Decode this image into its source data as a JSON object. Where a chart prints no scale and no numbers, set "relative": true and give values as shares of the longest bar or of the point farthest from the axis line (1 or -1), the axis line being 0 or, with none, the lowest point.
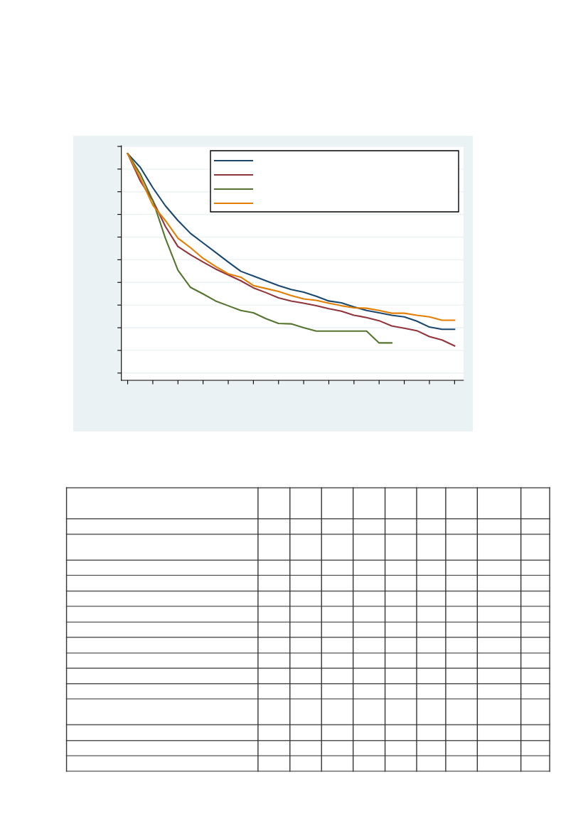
{
  "chart_data": {
    "type": "line",
    "relative": true,
    "grid": "y",
    "marker": "none",
    "line_style": "solid",
    "categories": [
      null,
      null,
      null,
      null,
      null,
      null,
      null,
      null,
      null,
      null,
      null,
      null,
      null,
      null,
      null,
      null,
      null,
      null,
      null,
      null,
      null,
      null,
      null,
      null,
      null,
      null,
      null
    ],
    "series": [
      {
        "color": "#1a476f",
        "values": [
          1.0,
          0.94,
          0.85,
          0.77,
          0.705,
          0.648,
          0.606,
          0.564,
          0.522,
          0.481,
          0.46,
          0.439,
          0.418,
          0.401,
          0.389,
          0.371,
          0.35,
          0.342,
          0.324,
          0.308,
          0.298,
          0.287,
          0.28,
          0.261,
          0.235,
          0.225,
          0.225
        ]
      },
      {
        "color": "#90353b",
        "values": [
          1.0,
          0.88,
          0.794,
          0.679,
          0.59,
          0.554,
          0.522,
          0.491,
          0.465,
          0.439,
          0.408,
          0.387,
          0.364,
          0.35,
          0.34,
          0.329,
          0.316,
          0.305,
          0.287,
          0.277,
          0.263,
          0.24,
          0.23,
          0.219,
          0.193,
          0.178,
          0.152
        ]
      },
      {
        "color": "#55752f",
        "values": [
          1.0,
          0.911,
          0.794,
          0.627,
          0.486,
          0.41,
          0.381,
          0.35,
          0.329,
          0.308,
          0.298,
          0.272,
          0.251,
          0.249,
          0.232,
          0.217,
          0.217,
          0.217,
          0.217,
          0.217,
          0.165,
          0.165,
          null,
          null,
          null,
          null,
          null
        ]
      },
      {
        "color": "#e37e00",
        "values": [
          1.0,
          0.893,
          0.773,
          0.705,
          0.627,
          0.585,
          0.538,
          0.502,
          0.47,
          0.455,
          0.418,
          0.405,
          0.392,
          0.374,
          0.359,
          0.353,
          0.34,
          0.329,
          0.32,
          0.318,
          0.308,
          0.296,
          0.296,
          0.287,
          0.28,
          0.265,
          0.265
        ]
      }
    ]
  }
}
